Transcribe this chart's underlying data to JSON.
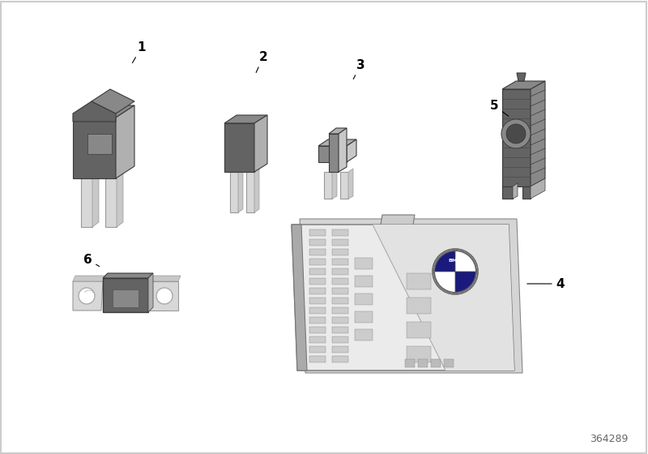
{
  "bg_color": "#ffffff",
  "border_color": "#cccccc",
  "dark": "#636363",
  "dark2": "#555555",
  "mid": "#888888",
  "light": "#b0b0b0",
  "silver": "#c8c8c8",
  "silver2": "#d8d8d8",
  "edge": "#3a3a3a",
  "footnote": "364289"
}
